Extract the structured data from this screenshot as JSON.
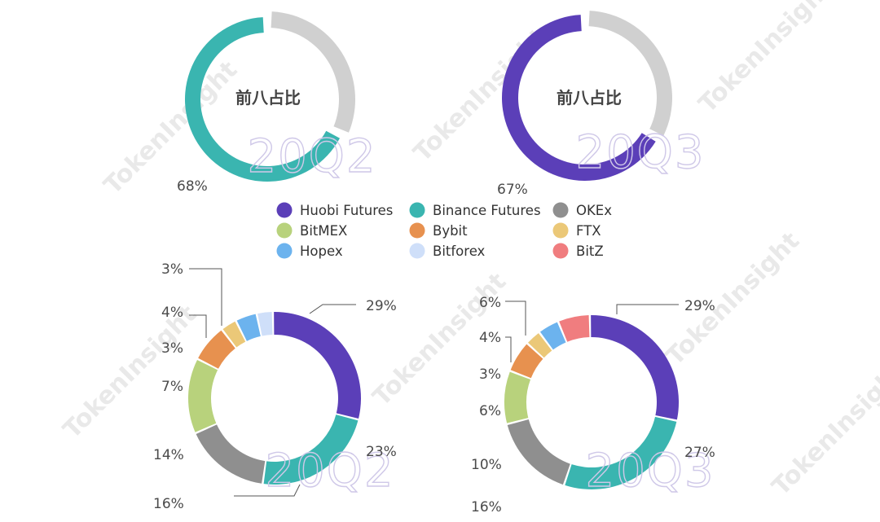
{
  "watermark": "TokenInsight",
  "colors": {
    "Huobi Futures": "#5b3fb8",
    "Binance Futures": "#3ab5b0",
    "OKEx": "#8f8f8f",
    "BitMEX": "#b8d27c",
    "Bybit": "#e7914f",
    "FTX": "#ebc878",
    "Hopex": "#6cb3ee",
    "Bitforex": "#cfdff9",
    "BitZ": "#f07d7f",
    "rest": "#d0d0d0"
  },
  "legend": [
    "Huobi Futures",
    "Binance Futures",
    "OKEx",
    "BitMEX",
    "Bybit",
    "FTX",
    "Hopex",
    "Bitforex",
    "BitZ"
  ],
  "chart_data": [
    {
      "type": "pie",
      "variant": "donut",
      "quarter": "20Q2",
      "center_label": "前八占比",
      "slices": [
        {
          "name": "前八占比",
          "value": 68,
          "label": "68%"
        },
        {
          "name": "other",
          "value": 32,
          "label": ""
        }
      ]
    },
    {
      "type": "pie",
      "variant": "donut",
      "quarter": "20Q3",
      "center_label": "前八占比",
      "slices": [
        {
          "name": "前八占比",
          "value": 67,
          "label": "67%"
        },
        {
          "name": "other",
          "value": 33,
          "label": ""
        }
      ]
    },
    {
      "type": "pie",
      "variant": "donut",
      "quarter": "20Q2",
      "slices": [
        {
          "name": "Huobi Futures",
          "value": 29,
          "label": "29%"
        },
        {
          "name": "Binance Futures",
          "value": 23,
          "label": "23%"
        },
        {
          "name": "OKEx",
          "value": 16,
          "label": "16%"
        },
        {
          "name": "BitMEX",
          "value": 14,
          "label": "14%"
        },
        {
          "name": "Bybit",
          "value": 7,
          "label": "7%"
        },
        {
          "name": "FTX",
          "value": 3,
          "label": "3%"
        },
        {
          "name": "Hopex",
          "value": 4,
          "label": "4%"
        },
        {
          "name": "Bitforex",
          "value": 3,
          "label": "3%"
        }
      ]
    },
    {
      "type": "pie",
      "variant": "donut",
      "quarter": "20Q3",
      "slices": [
        {
          "name": "Huobi Futures",
          "value": 29,
          "label": "29%"
        },
        {
          "name": "Binance Futures",
          "value": 27,
          "label": "27%"
        },
        {
          "name": "OKEx",
          "value": 16,
          "label": "16%"
        },
        {
          "name": "BitMEX",
          "value": 10,
          "label": "10%"
        },
        {
          "name": "Bybit",
          "value": 6,
          "label": "6%"
        },
        {
          "name": "FTX",
          "value": 3,
          "label": "3%"
        },
        {
          "name": "Hopex",
          "value": 4,
          "label": "4%"
        },
        {
          "name": "BitZ",
          "value": 6,
          "label": "6%"
        }
      ]
    }
  ]
}
